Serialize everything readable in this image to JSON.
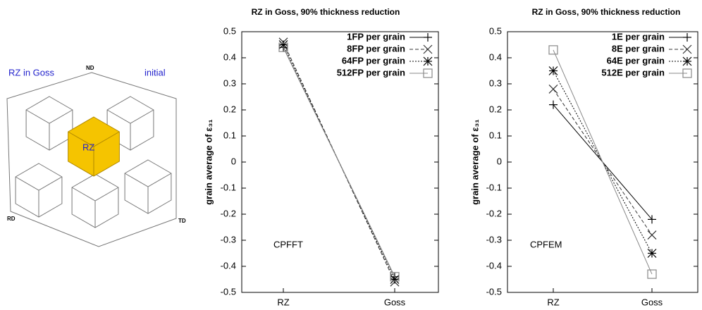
{
  "diagram": {
    "left_label": "RZ in Goss",
    "right_label": "initial",
    "nd": "ND",
    "rd": "RD",
    "td": "TD",
    "center": "RZ"
  },
  "chart_data": [
    {
      "type": "line",
      "title": "RZ in Goss, 90% thickness reduction",
      "ylabel": "grain average of ε₃₁",
      "annotation": "CPFFT",
      "categories": [
        "RZ",
        "Goss"
      ],
      "ylim": [
        -0.5,
        0.5
      ],
      "yticks": [
        -0.5,
        -0.4,
        -0.3,
        -0.2,
        -0.1,
        0,
        0.1,
        0.2,
        0.3,
        0.4,
        0.5
      ],
      "legend": "top-right",
      "series": [
        {
          "name": "1FP per grain",
          "color": "#000000",
          "marker": "plus",
          "dash": "solid",
          "values": [
            0.44,
            -0.44
          ]
        },
        {
          "name": "8FP per grain",
          "color": "#333333",
          "marker": "x",
          "dash": "dashed",
          "values": [
            0.46,
            -0.46
          ]
        },
        {
          "name": "64FP per grain",
          "color": "#000000",
          "marker": "star",
          "dash": "dotted",
          "values": [
            0.45,
            -0.45
          ]
        },
        {
          "name": "512FP per grain",
          "color": "#888888",
          "marker": "square",
          "dash": "solid",
          "values": [
            0.44,
            -0.44
          ]
        }
      ]
    },
    {
      "type": "line",
      "title": "RZ in Goss, 90% thickness reduction",
      "ylabel": "grain average of ε₃₁",
      "annotation": "CPFEM",
      "categories": [
        "RZ",
        "Goss"
      ],
      "ylim": [
        -0.5,
        0.5
      ],
      "yticks": [
        -0.5,
        -0.4,
        -0.3,
        -0.2,
        -0.1,
        0,
        0.1,
        0.2,
        0.3,
        0.4,
        0.5
      ],
      "legend": "top-right",
      "series": [
        {
          "name": "1E per grain",
          "color": "#000000",
          "marker": "plus",
          "dash": "solid",
          "values": [
            0.22,
            -0.22
          ]
        },
        {
          "name": "8E per grain",
          "color": "#333333",
          "marker": "x",
          "dash": "dashed",
          "values": [
            0.28,
            -0.28
          ]
        },
        {
          "name": "64E per grain",
          "color": "#000000",
          "marker": "star",
          "dash": "dotted",
          "values": [
            0.35,
            -0.35
          ]
        },
        {
          "name": "512E per grain",
          "color": "#888888",
          "marker": "square",
          "dash": "solid",
          "values": [
            0.43,
            -0.43
          ]
        }
      ]
    }
  ]
}
